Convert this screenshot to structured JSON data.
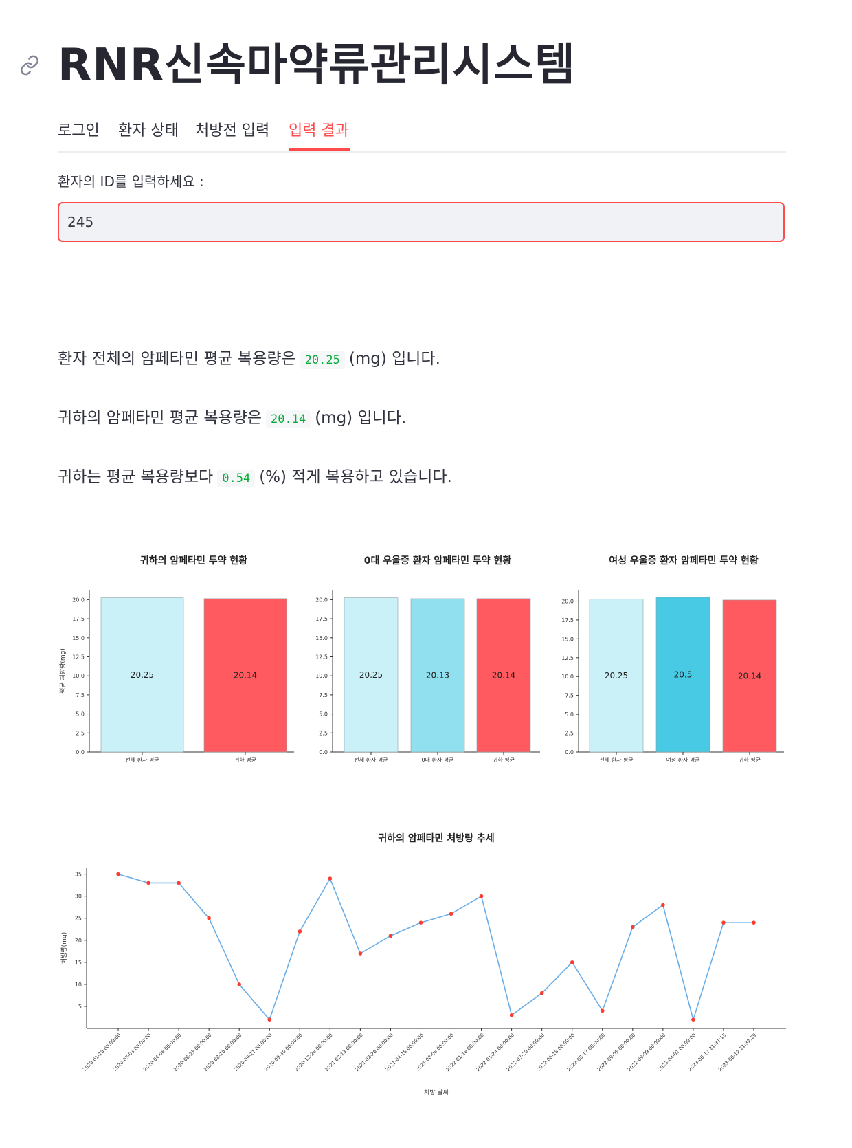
{
  "header": {
    "title": "RNR신속마약류관리시스템",
    "link_icon": "link-icon"
  },
  "tabs": [
    {
      "label": "로그인",
      "active": false
    },
    {
      "label": "환자 상태",
      "active": false
    },
    {
      "label": "처방전 입력",
      "active": false
    },
    {
      "label": "입력 결과",
      "active": true
    }
  ],
  "form": {
    "label": "환자의 ID를 입력하세요 :",
    "value": "245"
  },
  "results": {
    "line1_before": "환자 전체의 암페타민 평균 복용량은",
    "line1_value": "20.25",
    "line1_after": "(mg) 입니다.",
    "line2_before": "귀하의 암페타민 평균 복용량은",
    "line2_value": "20.14",
    "line2_after": "(mg) 입니다.",
    "line3_before": "귀하는 평균 복용량보다",
    "line3_value": "0.54",
    "line3_after": "(%) 적게 복용하고 있습니다."
  },
  "colors": {
    "accent": "#ff4b4b",
    "code_green": "#09ab3b",
    "light_blue": "#caf0f8",
    "mid_blue": "#90e0ef",
    "deep_blue": "#48cae4",
    "red_bar": "#ff5a5f",
    "line_blue": "#6aaee8",
    "point_red": "#ff3b30"
  },
  "chart_data": [
    {
      "type": "bar",
      "title": "귀하의 암페타민 투약 현황",
      "ylabel": "평균 처방량(mg)",
      "categories": [
        "전체 환자 평균",
        "귀하 평균"
      ],
      "values": [
        20.25,
        20.14
      ],
      "data_labels": [
        "20.25",
        "20.14"
      ],
      "yticks": [
        "0.0",
        "2.5",
        "5.0",
        "7.5",
        "10.0",
        "12.5",
        "15.0",
        "17.5",
        "20.0"
      ],
      "ylim": [
        0,
        21.3
      ],
      "colors": [
        "#caf0f8",
        "#ff5a5f"
      ]
    },
    {
      "type": "bar",
      "title": "0대 우울증 환자 암페타민 투약 현황",
      "categories": [
        "전체 환자 평균",
        "0대 환자 평균",
        "귀하 평균"
      ],
      "values": [
        20.25,
        20.13,
        20.14
      ],
      "data_labels": [
        "20.25",
        "20.13",
        "20.14"
      ],
      "yticks": [
        "0.0",
        "2.5",
        "5.0",
        "7.5",
        "10.0",
        "12.5",
        "15.0",
        "17.5",
        "20.0"
      ],
      "ylim": [
        0,
        21.3
      ],
      "colors": [
        "#caf0f8",
        "#90e0ef",
        "#ff5a5f"
      ]
    },
    {
      "type": "bar",
      "title": "여성 우울증 환자 암페타민 투약 현황",
      "categories": [
        "전체 환자 평균",
        "여성 환자 평균",
        "귀하 평균"
      ],
      "values": [
        20.25,
        20.5,
        20.14
      ],
      "data_labels": [
        "20.25",
        "20.5",
        "20.14"
      ],
      "yticks": [
        "0.0",
        "2.5",
        "5.0",
        "7.5",
        "10.0",
        "12.5",
        "15.0",
        "17.5",
        "20.0"
      ],
      "ylim": [
        0,
        21.5
      ],
      "colors": [
        "#caf0f8",
        "#48cae4",
        "#ff5a5f"
      ]
    },
    {
      "type": "line",
      "title": "귀하의 암페타민 처방량 추세",
      "xlabel": "처방 날짜",
      "ylabel": "처방량(mg)",
      "x": [
        "2020-01-10 00:00:00",
        "2020-03-03 00:00:00",
        "2020-04-08 00:00:00",
        "2020-06-23 00:00:00",
        "2020-08-10 00:00:00",
        "2020-09-11 00:00:00",
        "2020-09-30 00:00:00",
        "2020-12-26 00:00:00",
        "2021-02-13 00:00:00",
        "2021-02-26 00:00:00",
        "2021-04-18 00:00:00",
        "2021-08-06 00:00:00",
        "2022-01-16 00:00:00",
        "2022-01-24 00:00:00",
        "2022-03-20 00:00:00",
        "2022-06-16 00:00:00",
        "2022-08-17 00:00:00",
        "2022-09-05 00:00:00",
        "2022-09-09 00:00:00",
        "2023-04-01 00:00:00",
        "2023-06-12 21:31:15",
        "2023-06-12 21:32:29"
      ],
      "y": [
        35,
        33,
        33,
        25,
        10,
        2,
        22,
        34,
        17,
        21,
        24,
        26,
        30,
        3,
        8,
        15,
        4,
        23,
        28,
        2,
        24,
        24
      ],
      "yticks": [
        "5",
        "10",
        "15",
        "20",
        "25",
        "30",
        "35"
      ],
      "ylim": [
        0,
        36.5
      ]
    }
  ]
}
